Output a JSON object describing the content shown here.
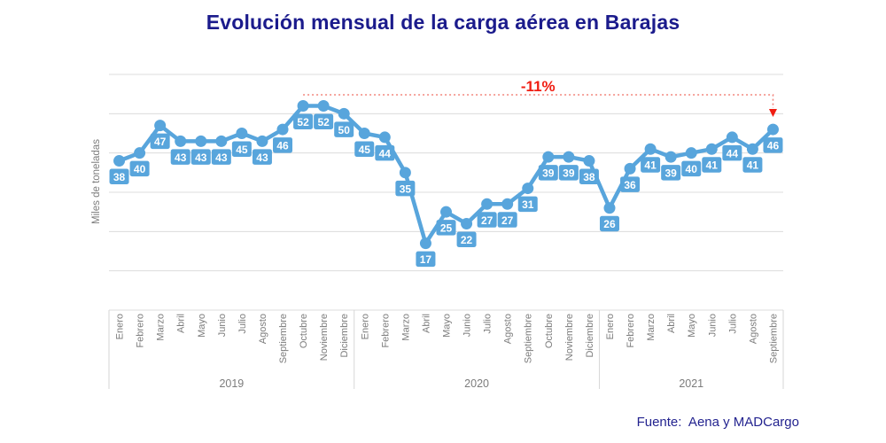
{
  "page": {
    "source": "Fuente:  Aena y MADCargo"
  },
  "chart_data": {
    "type": "line",
    "title": "Evolución mensual de la carga aérea en Barajas",
    "ylabel": "Miles de toneladas",
    "ylim": [
      0,
      60
    ],
    "grid_step": 10,
    "grid": true,
    "groups": [
      {
        "year": "2019",
        "months": [
          "Enero",
          "Febrero",
          "Marzo",
          "Abril",
          "Mayo",
          "Junio",
          "Julio",
          "Agosto",
          "Septiembre",
          "Octubre",
          "Noviembre",
          "Diciembre"
        ],
        "values": [
          38,
          40,
          47,
          43,
          43,
          43,
          45,
          43,
          46,
          52,
          52,
          50
        ]
      },
      {
        "year": "2020",
        "months": [
          "Enero",
          "Febrero",
          "Marzo",
          "Abril",
          "Mayo",
          "Junio",
          "Julio",
          "Agosto",
          "Septiembre",
          "Octubre",
          "Noviembre",
          "Diciembre"
        ],
        "values": [
          45,
          44,
          35,
          17,
          25,
          22,
          27,
          27,
          31,
          39,
          39,
          38
        ]
      },
      {
        "year": "2021",
        "months": [
          "Enero",
          "Febrero",
          "Marzo",
          "Abril",
          "Mayo",
          "Junio",
          "Julio",
          "Agosto",
          "Septiembre"
        ],
        "values": [
          26,
          36,
          41,
          39,
          40,
          41,
          44,
          41,
          46
        ]
      }
    ],
    "annotation": {
      "label": "-11%",
      "from_index": 9,
      "to_index": 32,
      "level_value": 55
    },
    "colors": {
      "series": "#58a5dc",
      "data_label_bg": "#58a5dc",
      "data_label_text": "#ffffff",
      "grid": "#dcdcdc",
      "divider": "#d6d6d6",
      "axis_text": "#7c7c7c",
      "annotation_text": "#f01d12",
      "annotation_dots": "#f2857c",
      "title_text": "#1b1b8c"
    }
  }
}
